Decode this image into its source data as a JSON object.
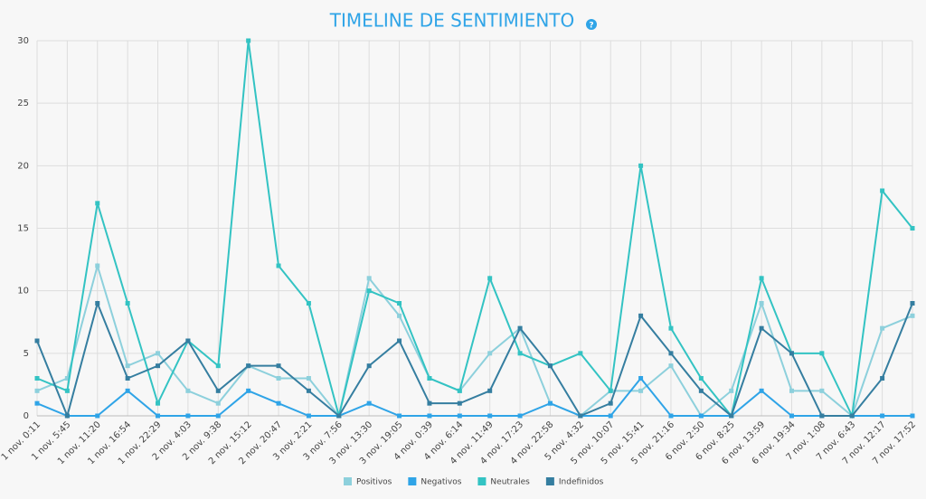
{
  "chart_data": {
    "type": "line",
    "title": "TIMELINE DE SENTIMIENTO",
    "help_icon": "?",
    "categories": [
      "1 nov. 0:11",
      "1 nov. 5:45",
      "1 nov. 11:20",
      "1 nov. 16:54",
      "1 nov. 22:29",
      "2 nov. 4:03",
      "2 nov. 9:38",
      "2 nov. 15:12",
      "2 nov. 20:47",
      "3 nov. 2:21",
      "3 nov. 7:56",
      "3 nov. 13:30",
      "3 nov. 19:05",
      "4 nov. 0:39",
      "4 nov. 6:14",
      "4 nov. 11:49",
      "4 nov. 17:23",
      "4 nov. 22:58",
      "5 nov. 4:32",
      "5 nov. 10:07",
      "5 nov. 15:41",
      "5 nov. 21:16",
      "6 nov. 2:50",
      "6 nov. 8:25",
      "6 nov. 13:59",
      "6 nov. 19:34",
      "7 nov. 1:08",
      "7 nov. 6:43",
      "7 nov. 12:17",
      "7 nov. 17:52"
    ],
    "series": [
      {
        "name": "Positivos",
        "color": "#8dd0dc",
        "values": [
          2,
          3,
          12,
          4,
          5,
          2,
          1,
          4,
          3,
          3,
          0,
          11,
          8,
          3,
          2,
          5,
          7,
          1,
          0,
          2,
          2,
          4,
          0,
          2,
          9,
          2,
          2,
          0,
          7,
          8
        ]
      },
      {
        "name": "Negativos",
        "color": "#2fa4e7",
        "values": [
          1,
          0,
          0,
          2,
          0,
          0,
          0,
          2,
          1,
          0,
          0,
          1,
          0,
          0,
          0,
          0,
          0,
          1,
          0,
          0,
          3,
          0,
          0,
          0,
          2,
          0,
          0,
          0,
          0,
          0
        ]
      },
      {
        "name": "Neutrales",
        "color": "#33c3c3",
        "values": [
          3,
          2,
          17,
          9,
          1,
          6,
          4,
          30,
          12,
          9,
          0,
          10,
          9,
          3,
          2,
          11,
          5,
          4,
          5,
          2,
          20,
          7,
          3,
          0,
          11,
          5,
          5,
          0,
          18,
          15
        ]
      },
      {
        "name": "Indefinidos",
        "color": "#357ea0",
        "values": [
          6,
          0,
          9,
          3,
          4,
          6,
          2,
          4,
          4,
          2,
          0,
          4,
          6,
          1,
          1,
          2,
          7,
          4,
          0,
          1,
          8,
          5,
          2,
          0,
          7,
          5,
          0,
          0,
          3,
          9
        ]
      }
    ],
    "ylim": [
      0,
      30
    ],
    "yticks": [
      0,
      5,
      10,
      15,
      20,
      25,
      30
    ],
    "grid": true,
    "legend": "bottom"
  }
}
